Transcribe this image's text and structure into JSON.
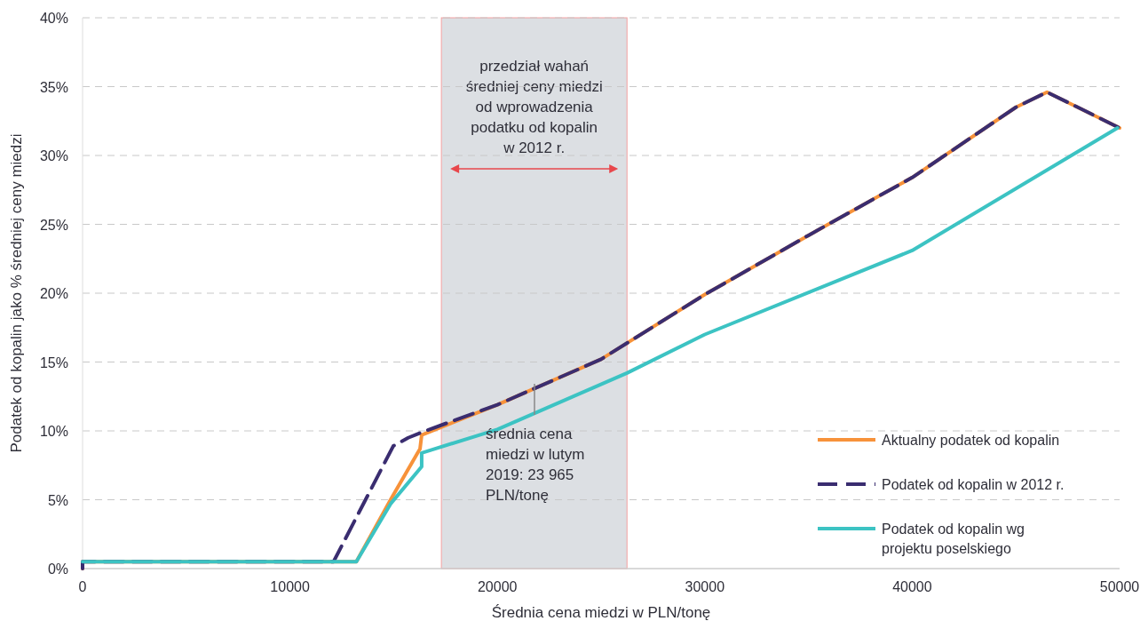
{
  "chart_data": {
    "type": "line",
    "xlabel": "Średnia cena miedzi w PLN/tonę",
    "ylabel": "Podatek od kopalin jako % średniej ceny miedzi",
    "xlim": [
      0,
      50000
    ],
    "xticks": [
      0,
      10000,
      20000,
      30000,
      40000,
      50000
    ],
    "ylim": [
      0,
      40
    ],
    "yticks": [
      {
        "value": 0,
        "label": "0%"
      },
      {
        "value": 5,
        "label": "5%"
      },
      {
        "value": 10,
        "label": "10%"
      },
      {
        "value": 15,
        "label": "15%"
      },
      {
        "value": 20,
        "label": "20%"
      },
      {
        "value": 25,
        "label": "25%"
      },
      {
        "value": 30,
        "label": "30%"
      },
      {
        "value": 35,
        "label": "35%"
      },
      {
        "value": 40,
        "label": "40%"
      }
    ],
    "grid": "y",
    "legend": "bottom right",
    "marker": "none",
    "series": [
      {
        "name": "Aktualny podatek od kopalin",
        "color": "#f7923a",
        "line_style": "solid",
        "x": [
          0,
          0,
          13200,
          14850,
          16270,
          16350,
          20000,
          25000,
          30000,
          35000,
          40000,
          45000,
          46500,
          50000
        ],
        "values": [
          0,
          0.5,
          0.5,
          5.0,
          8.7,
          9.7,
          11.9,
          15.2,
          19.9,
          24.2,
          28.4,
          33.5,
          34.6,
          32.0
        ]
      },
      {
        "name": "Podatek od kopalin w 2012 r.",
        "color": "#3a2d70",
        "line_style": "dashed",
        "x": [
          0,
          0,
          12100,
          14980,
          15700,
          16350,
          20000,
          25000,
          30000,
          35000,
          40000,
          45000,
          46500,
          50000
        ],
        "values": [
          0,
          0.5,
          0.5,
          8.9,
          9.5,
          9.9,
          11.9,
          15.2,
          19.9,
          24.2,
          28.4,
          33.5,
          34.6,
          32.0
        ]
      },
      {
        "name": "Podatek od kopalin wg projektu poselskiego",
        "color": "#3cc3c3",
        "line_style": "solid",
        "x": [
          0,
          13200,
          14850,
          16350,
          16350,
          20000,
          26250,
          30000,
          40000,
          49900
        ],
        "values": [
          0.5,
          0.5,
          4.7,
          7.4,
          8.4,
          10.1,
          14.2,
          17.0,
          23.1,
          32.0
        ]
      }
    ],
    "bands": [
      {
        "axis": "x",
        "from": 17300,
        "to": 26250,
        "label": "przedział wahań\nśredniej ceny miedzi\nod wprowadzenia\npodatku od kopalin\nw 2012 r.",
        "color": "#dcdfe3"
      }
    ],
    "annotations": [
      "średnia cena\nmiedzi w lutym\n2019: 23 965\nPLN/tonę"
    ]
  }
}
